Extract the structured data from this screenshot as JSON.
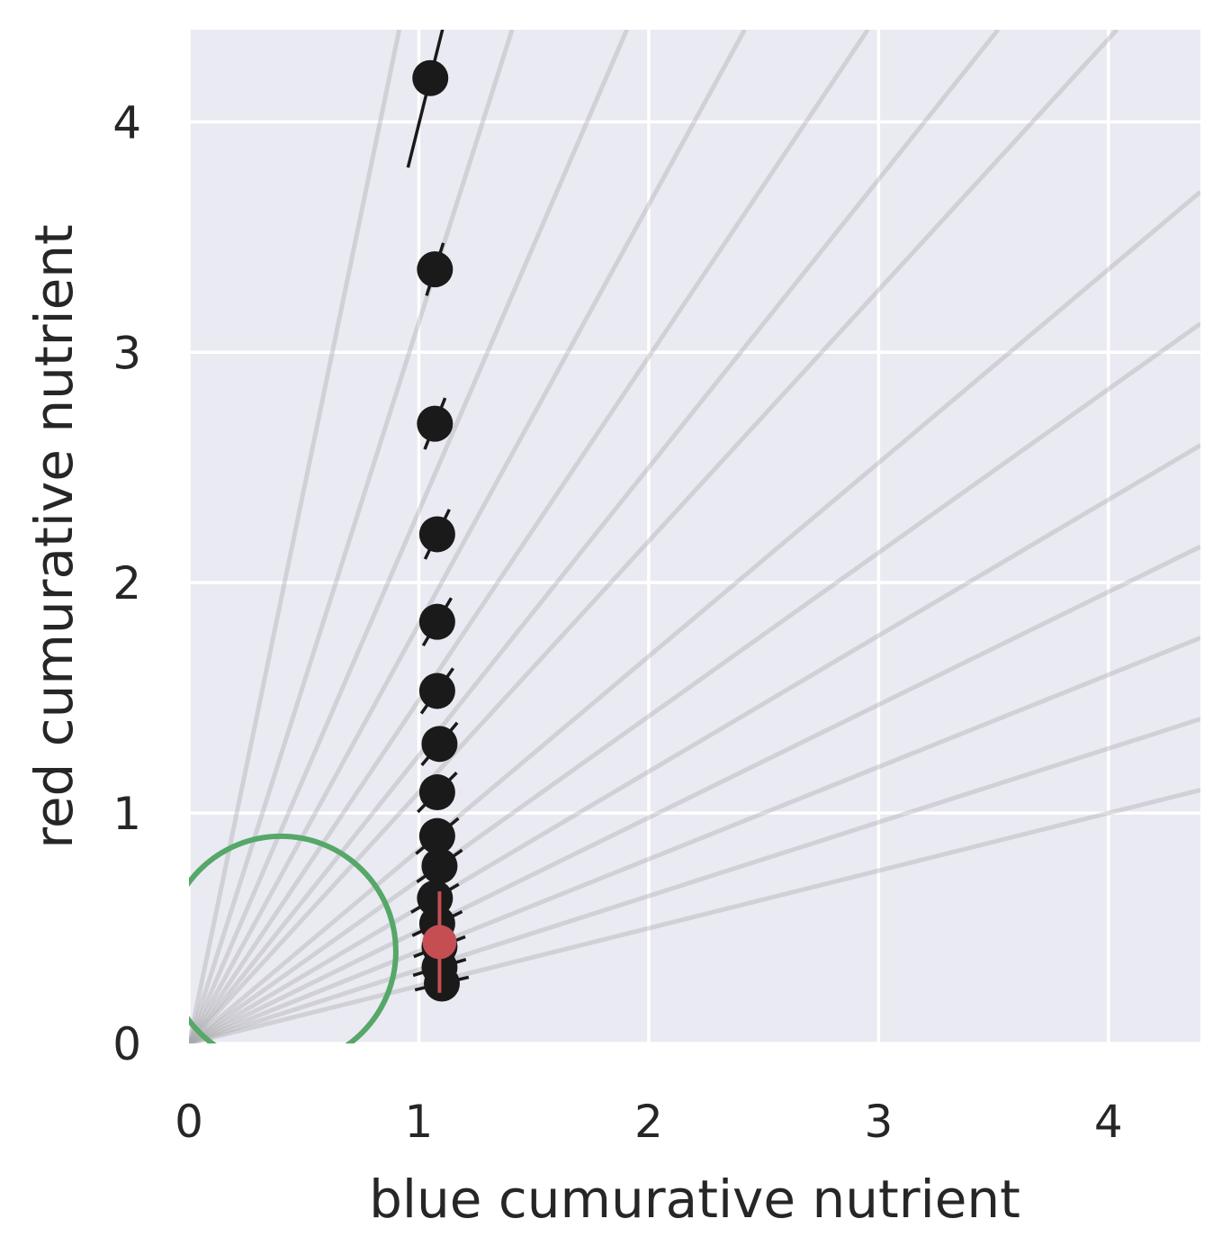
{
  "chart_data": {
    "type": "scatter",
    "title": "",
    "xlabel": "blue cumurative nutrient",
    "ylabel": "red cumurative nutrient",
    "xlim": [
      0,
      4.4
    ],
    "ylim": [
      0,
      4.4
    ],
    "xticks": [
      0,
      1,
      2,
      3,
      4
    ],
    "yticks": [
      0,
      1,
      2,
      3,
      4
    ],
    "xtick_labels": [
      "0",
      "1",
      "2",
      "3",
      "4"
    ],
    "ytick_labels": [
      "0",
      "1",
      "2",
      "3",
      "4"
    ],
    "grid": true,
    "background_color": "#EAEAF2",
    "grid_color": "#FFFFFF",
    "rays": {
      "color": "#A9A9AD",
      "slopes": [
        4.81,
        3.13,
        2.31,
        1.82,
        1.49,
        1.25,
        1.09,
        0.84,
        0.71,
        0.59,
        0.49,
        0.4,
        0.32,
        0.25
      ]
    },
    "circle": {
      "color": "#55A868",
      "center_x": 0.4,
      "center_y": 0.4,
      "radius": 0.5
    },
    "series": [
      {
        "color": "#1A1A1A",
        "points": [
          {
            "x": 1.05,
            "y": 4.19
          },
          {
            "x": 1.07,
            "y": 3.36
          },
          {
            "x": 1.07,
            "y": 2.69
          },
          {
            "x": 1.08,
            "y": 2.21
          },
          {
            "x": 1.08,
            "y": 1.83
          },
          {
            "x": 1.08,
            "y": 1.53
          },
          {
            "x": 1.09,
            "y": 1.3
          },
          {
            "x": 1.08,
            "y": 1.09
          },
          {
            "x": 1.08,
            "y": 0.9
          },
          {
            "x": 1.09,
            "y": 0.77
          },
          {
            "x": 1.07,
            "y": 0.63
          },
          {
            "x": 1.08,
            "y": 0.52
          },
          {
            "x": 1.09,
            "y": 0.42
          },
          {
            "x": 1.09,
            "y": 0.33
          },
          {
            "x": 1.1,
            "y": 0.26
          }
        ]
      },
      {
        "color": "#C44E52",
        "points": [
          {
            "x": 1.09,
            "y": 0.44
          }
        ]
      }
    ]
  }
}
